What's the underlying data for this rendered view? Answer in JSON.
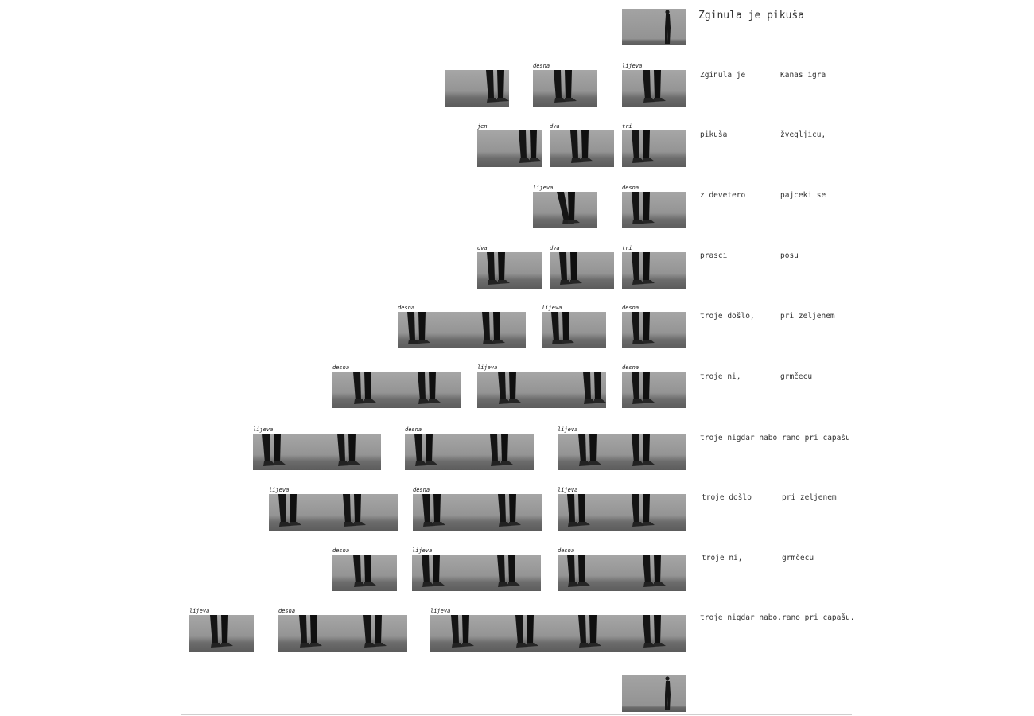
{
  "title": "Zginula je pikuša",
  "left_column": [
    "Zginula je",
    "pikuša",
    "z devetero",
    "prasci",
    "troje došlo,",
    "troje ni,",
    "troje nigdar nabo",
    "troje došlo",
    "troje ni,",
    "troje nigdar nabo."
  ],
  "right_column": [
    "Kanas igra",
    "žvegljicu,",
    "pajceki se",
    "posu",
    "pri zeljenem",
    "grmčecu",
    "rano pri capašu",
    "pri zeljenem",
    "grmčecu",
    "rano pri capašu."
  ],
  "captions": {
    "desna": "desna",
    "lijeva": "lijeva",
    "jen": "jen",
    "dva": "dva",
    "tri": "tri"
  }
}
